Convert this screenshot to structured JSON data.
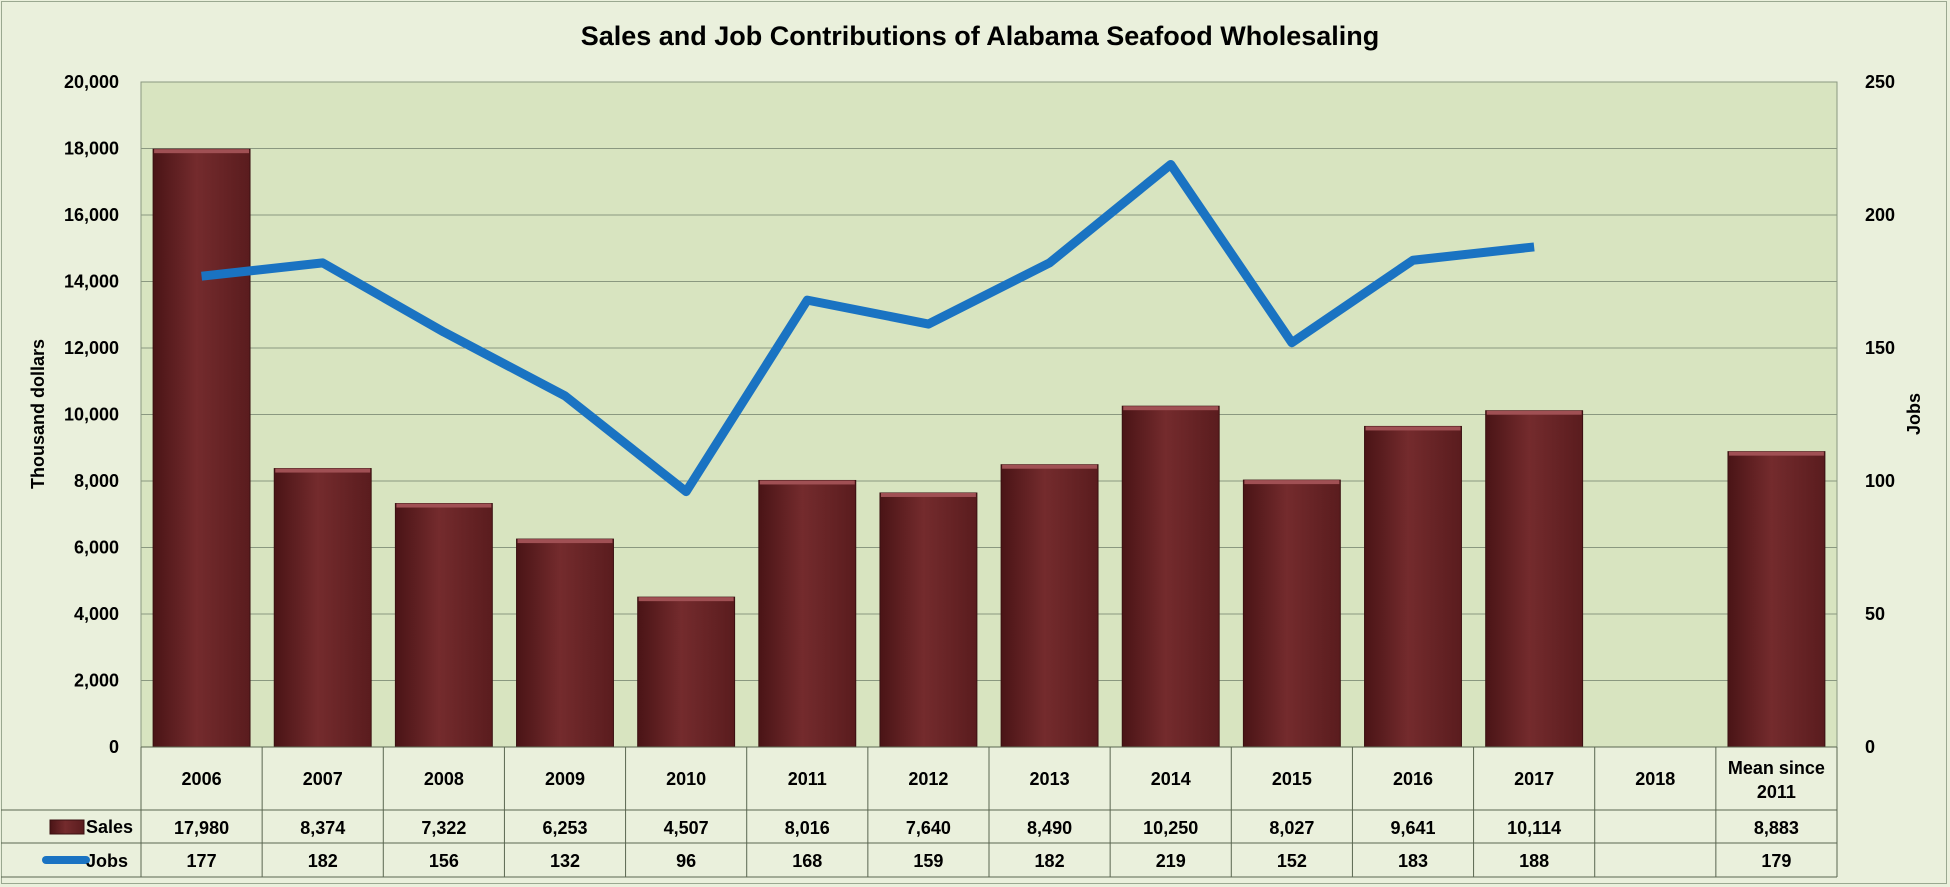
{
  "chart_data": {
    "type": "bar+line",
    "title": "Sales and Job Contributions of Alabama Seafood Wholesaling",
    "ylabel_left": "Thousand dollars",
    "ylabel_right": "Jobs",
    "ylim_left": [
      0,
      20000
    ],
    "ylim_right": [
      0,
      250
    ],
    "yticks_left": [
      "0",
      "2,000",
      "4,000",
      "6,000",
      "8,000",
      "10,000",
      "12,000",
      "14,000",
      "16,000",
      "18,000",
      "20,000"
    ],
    "yticks_right": [
      "0",
      "50",
      "100",
      "150",
      "200",
      "250"
    ],
    "categories": [
      "2006",
      "2007",
      "2008",
      "2009",
      "2010",
      "2011",
      "2012",
      "2013",
      "2014",
      "2015",
      "2016",
      "2017",
      "2018",
      "Mean since 2011"
    ],
    "grid": true,
    "legend": "data-table",
    "series": [
      {
        "name": "Sales",
        "type": "bar",
        "axis": "left",
        "color": "#6b2527",
        "values": [
          17980,
          8374,
          7322,
          6253,
          4507,
          8016,
          7640,
          8490,
          10250,
          8027,
          9641,
          10114,
          null,
          8883
        ],
        "labels": [
          "17,980",
          "8,374",
          "7,322",
          "6,253",
          "4,507",
          "8,016",
          "7,640",
          "8,490",
          "10,250",
          "8,027",
          "9,641",
          "10,114",
          "",
          "8,883"
        ]
      },
      {
        "name": "Jobs",
        "type": "line",
        "axis": "right",
        "color": "#1a73c2",
        "values": [
          177,
          182,
          156,
          132,
          96,
          168,
          159,
          182,
          219,
          152,
          183,
          188,
          null,
          null
        ],
        "labels": [
          "177",
          "182",
          "156",
          "132",
          "96",
          "168",
          "159",
          "182",
          "219",
          "152",
          "183",
          "188",
          "",
          "179"
        ]
      }
    ]
  }
}
